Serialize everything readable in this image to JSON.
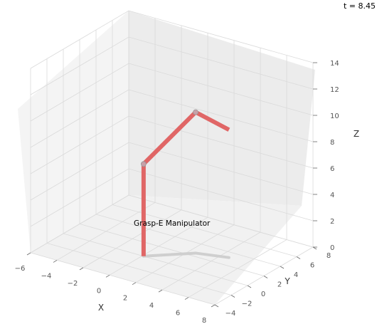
{
  "time_label": "t = 8.45",
  "chart_data": {
    "type": "line",
    "title": "",
    "projection": "3d",
    "xlabel": "X",
    "ylabel": "Y",
    "zlabel": "Z",
    "xlim": [
      -6,
      8
    ],
    "ylim": [
      -4,
      8
    ],
    "zlim": [
      0,
      14
    ],
    "xticks": [
      "−6",
      "−4",
      "−2",
      "0",
      "2",
      "4",
      "6",
      "8"
    ],
    "yticks": [
      "−4",
      "−2",
      "0",
      "2",
      "4",
      "6",
      "8"
    ],
    "zticks": [
      "0",
      "2",
      "4",
      "6",
      "8",
      "10",
      "12",
      "14"
    ],
    "grid": true,
    "annotation": "Grasp-E Manipulator",
    "colors": {
      "arm": "#e06666",
      "joint": "#c8a0a8",
      "shadow": "#cfcfcf",
      "pane_left": "#f4f4f4",
      "pane_right": "#ececec",
      "pane_floor": "#f1f1f1",
      "grid": "#dadada"
    },
    "series": [
      {
        "points": [
          {
            "x": 0.1,
            "y": 0.0,
            "z": 0.0
          },
          {
            "x": 0.1,
            "y": 0.0,
            "z": 7.0
          },
          {
            "x": 2.5,
            "y": 2.5,
            "z": 10.7
          },
          {
            "x": 4.6,
            "y": 3.2,
            "z": 9.7
          }
        ]
      }
    ]
  }
}
